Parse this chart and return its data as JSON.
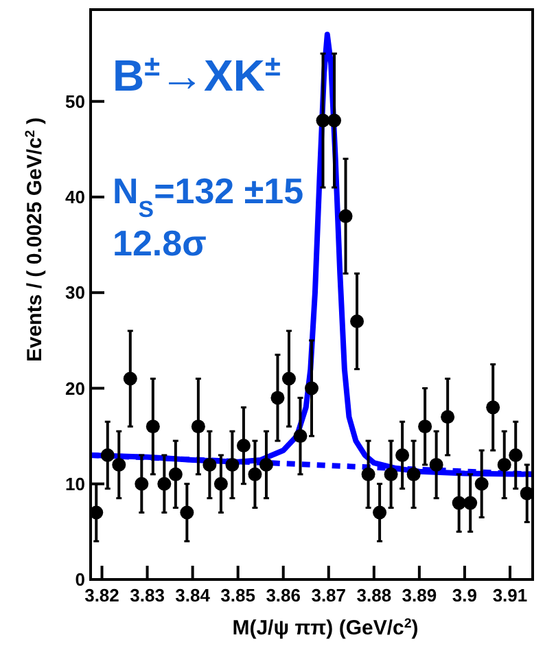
{
  "chart_data": {
    "type": "scatter",
    "xlabel": "M(J/ψ ππ) (GeV/c$^{2}$)",
    "ylabel": "Events / ( 0.0025 GeV/c$^{2}$ )",
    "annotations": [
      "B$^{±}$→XK$^{±}$",
      "N$_{S}$=132 ±15",
      "12.8σ"
    ],
    "xlim": [
      3.8175,
      3.915
    ],
    "xticks": [
      3.82,
      3.83,
      3.84,
      3.85,
      3.86,
      3.87,
      3.88,
      3.89,
      3.9,
      3.91
    ],
    "ylim": [
      0,
      59.6
    ],
    "yticks": [
      0,
      10,
      20,
      30,
      40,
      50
    ],
    "series": [
      {
        "type": "line",
        "color": "#0000ff",
        "line_style": "dashed",
        "x": [
          3.8175,
          3.915
        ],
        "values": [
          13,
          11
        ]
      },
      {
        "type": "line",
        "color": "#0000ff",
        "line_style": "solid",
        "x": [
          3.8175,
          3.83,
          3.84,
          3.85,
          3.855,
          3.86,
          3.863,
          3.865,
          3.866,
          3.867,
          3.868,
          3.869,
          3.8697,
          3.8705,
          3.8715,
          3.8725,
          3.8735,
          3.8745,
          3.876,
          3.878,
          3.88,
          3.885,
          3.89,
          3.9,
          3.915
        ],
        "values": [
          13,
          12.8,
          12.5,
          12.3,
          12.5,
          13.5,
          15,
          18,
          22,
          30,
          42,
          53,
          57,
          54,
          44,
          32,
          22,
          17,
          14.5,
          13,
          12.2,
          11.6,
          11.3,
          11.1,
          11
        ]
      },
      {
        "color": "#000000",
        "marker": "circle",
        "x": [
          3.81875,
          3.82125,
          3.82375,
          3.82625,
          3.82875,
          3.83125,
          3.83375,
          3.83625,
          3.83875,
          3.84125,
          3.84375,
          3.84625,
          3.84875,
          3.85125,
          3.85375,
          3.85625,
          3.85875,
          3.86125,
          3.86375,
          3.86625,
          3.86875,
          3.87125,
          3.87375,
          3.87625,
          3.87875,
          3.88125,
          3.88375,
          3.88625,
          3.88875,
          3.89125,
          3.89375,
          3.89625,
          3.89875,
          3.90125,
          3.90375,
          3.90625,
          3.90875,
          3.91125,
          3.91375
        ],
        "values": [
          7,
          13,
          12,
          21,
          10,
          16,
          10,
          11,
          7,
          16,
          12,
          10,
          12,
          14,
          11,
          12,
          19,
          21,
          15,
          20,
          48,
          48,
          38,
          27,
          11,
          7,
          11,
          13,
          11,
          16,
          12,
          17,
          8,
          8,
          10,
          18,
          12,
          13,
          9
        ],
        "errors": [
          3,
          3.5,
          3.5,
          5,
          3,
          5,
          3,
          3.5,
          3,
          5,
          3.5,
          3,
          3.5,
          4,
          3.5,
          3.5,
          4.5,
          5,
          4,
          5,
          7,
          7,
          6,
          5,
          3.5,
          3,
          3.5,
          3.5,
          3.5,
          4,
          3.5,
          4,
          3,
          3,
          3.5,
          4.5,
          3.5,
          3.5,
          3
        ]
      }
    ]
  }
}
